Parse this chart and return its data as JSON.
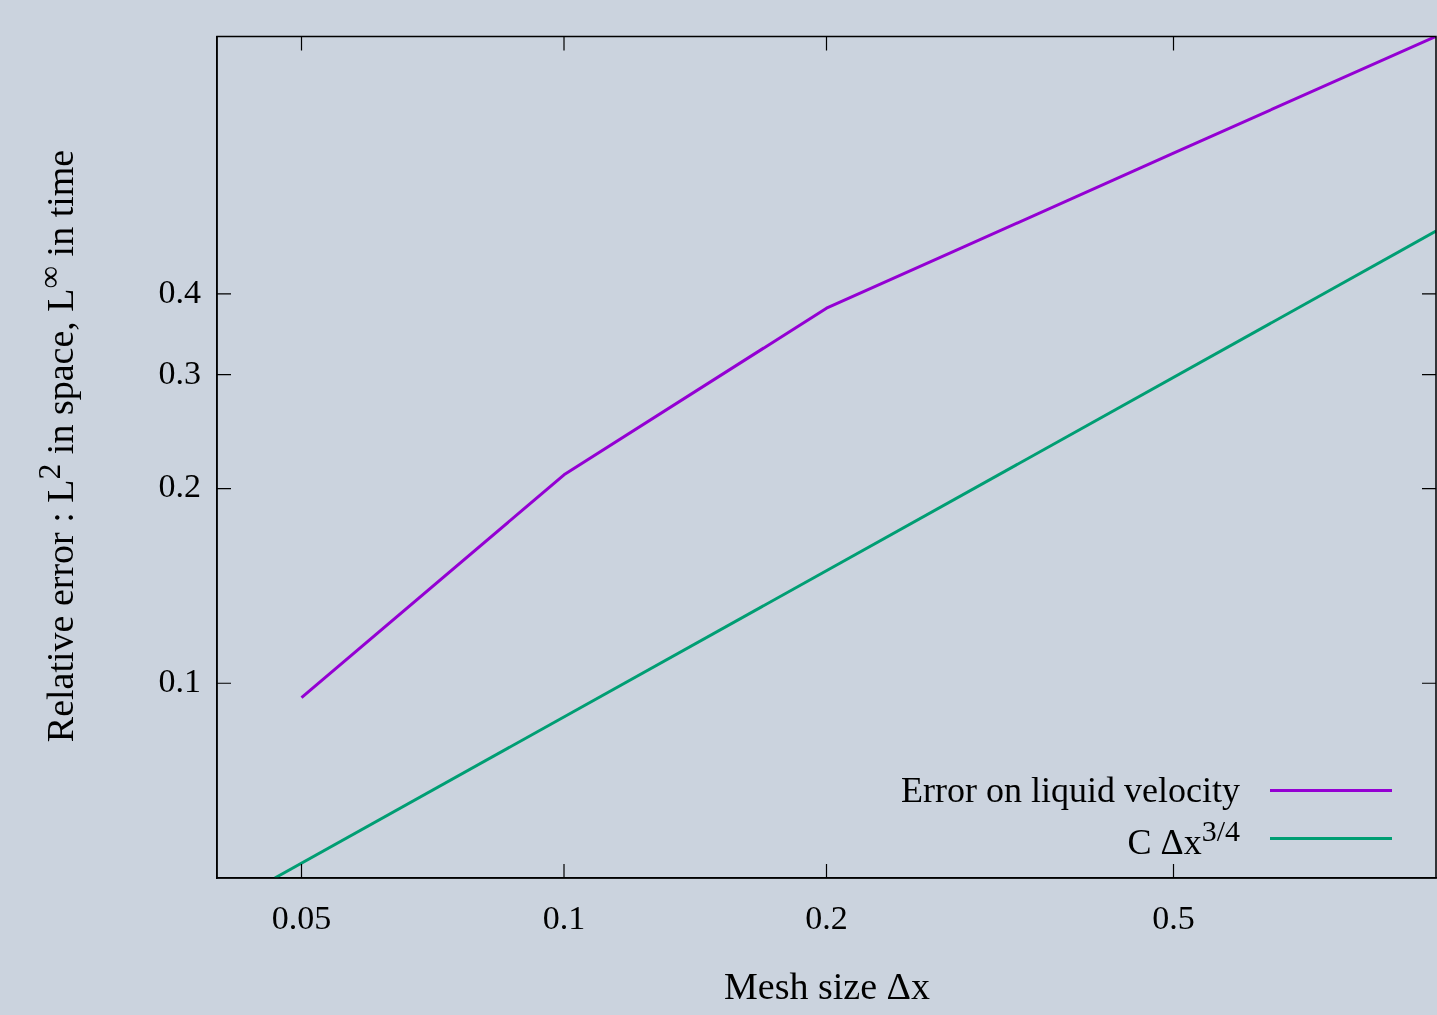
{
  "chart_data": {
    "type": "line",
    "xlabel": "Mesh size Δx",
    "ylabel": "Relative error : L$^{2}$ in space, L$^{∞}$ in time",
    "series": [
      {
        "name": "Error on liquid velocity",
        "color": "#9400d3",
        "x": [
          0.05,
          0.1,
          0.2,
          0.5,
          1
        ],
        "values": [
          0.095,
          0.21,
          0.38,
          0.66,
          1.0
        ]
      },
      {
        "name": "C Δx$^{3/4}$",
        "color": "#009e73",
        "x": [
          0.0466,
          1
        ],
        "values": [
          0.05,
          0.5
        ]
      }
    ],
    "log": "xy",
    "xlim": [
      0.04,
      1
    ],
    "ylim": [
      0.05,
      1
    ],
    "xticks": [
      0.05,
      0.1,
      0.2,
      0.5
    ],
    "yticks": [
      0.1,
      0.2,
      0.3,
      0.4
    ],
    "grid": false,
    "legend": "bottom right",
    "marker": "none",
    "line_style": "solid"
  }
}
